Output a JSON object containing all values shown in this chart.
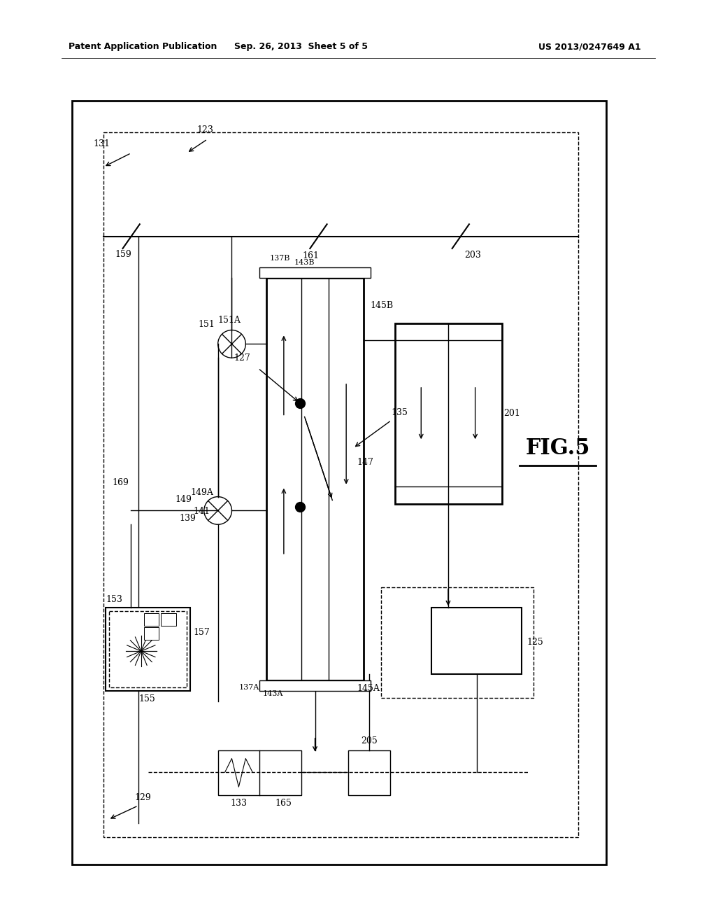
{
  "bg_color": "#ffffff",
  "header_left": "Patent Application Publication",
  "header_mid": "Sep. 26, 2013  Sheet 5 of 5",
  "header_right": "US 2013/0247649 A1"
}
